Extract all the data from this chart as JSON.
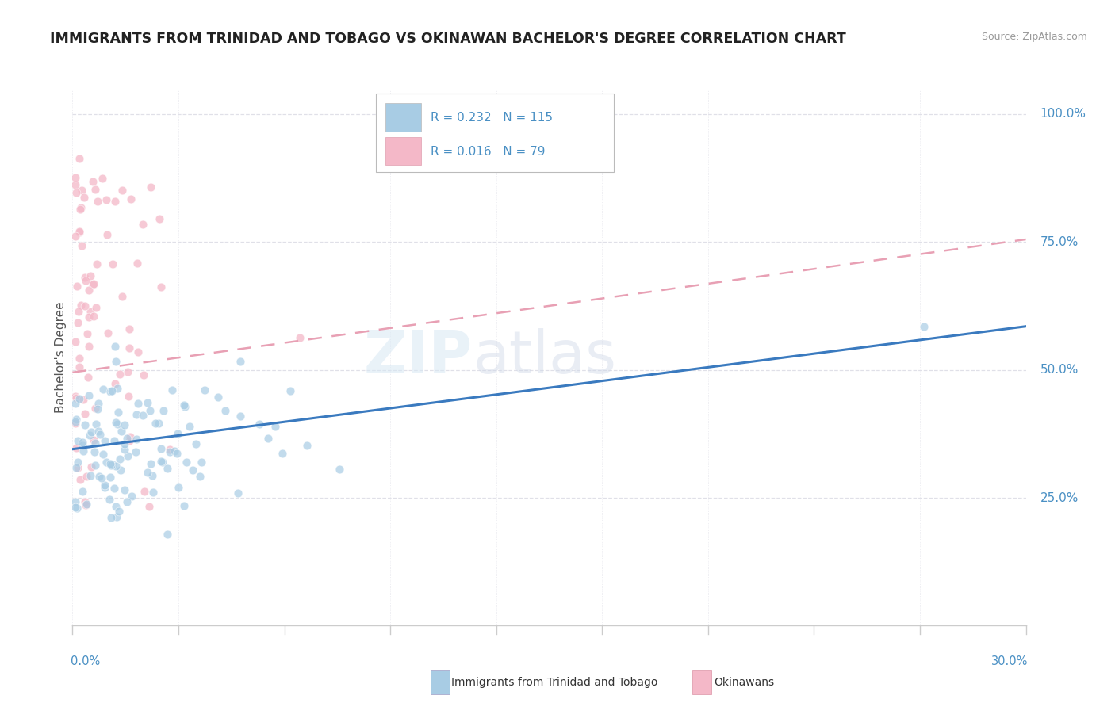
{
  "title": "IMMIGRANTS FROM TRINIDAD AND TOBAGO VS OKINAWAN BACHELOR'S DEGREE CORRELATION CHART",
  "source": "Source: ZipAtlas.com",
  "ylabel": "Bachelor's Degree",
  "ytick_labels": [
    "25.0%",
    "50.0%",
    "75.0%",
    "100.0%"
  ],
  "ytick_values": [
    0.25,
    0.5,
    0.75,
    1.0
  ],
  "xmin": 0.0,
  "xmax": 0.3,
  "ymin": 0.0,
  "ymax": 1.05,
  "color_blue": "#a8cce4",
  "color_pink": "#f4b8c8",
  "color_blue_dark": "#4a90c4",
  "color_text_blue": "#4a90c4",
  "color_trendline_blue": "#3a7abf",
  "color_trendline_pink": "#e8a0b4",
  "watermark": "ZIPAtlas",
  "trendline1_x0": 0.0,
  "trendline1_y0": 0.345,
  "trendline1_x1": 0.3,
  "trendline1_y1": 0.585,
  "trendline2_x0": 0.0,
  "trendline2_y0": 0.495,
  "trendline2_x1": 0.3,
  "trendline2_y1": 0.755,
  "legend_r1": "R = 0.232",
  "legend_n1": "N = 115",
  "legend_r2": "R = 0.016",
  "legend_n2": "N = 79",
  "legend_label1": "Immigrants from Trinidad and Tobago",
  "legend_label2": "Okinawans",
  "background_color": "#ffffff",
  "grid_color": "#e0e0e8",
  "axis_color": "#cccccc"
}
